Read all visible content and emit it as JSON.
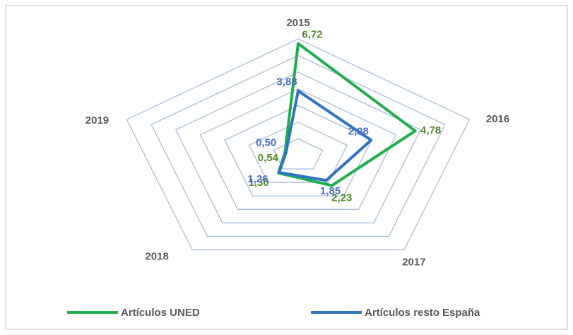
{
  "chart_data": {
    "type": "radar",
    "categories": [
      "2015",
      "2016",
      "2017",
      "2018",
      "2019"
    ],
    "series": [
      {
        "name": "Artículos UNED",
        "color": "#1fae4c",
        "label_color": "#548a2a",
        "values": [
          6.72,
          4.78,
          2.23,
          1.3,
          0.54
        ],
        "value_labels": [
          "6,72",
          "4,78",
          "2,23",
          "1,30",
          "0,54"
        ]
      },
      {
        "name": "Artículos resto España",
        "color": "#2e75c0",
        "label_color": "#4a6fc4",
        "values": [
          3.88,
          2.98,
          1.85,
          1.26,
          0.5
        ],
        "value_labels": [
          "3,88",
          "2,98",
          "1,85",
          "1,26",
          "0,50"
        ]
      }
    ],
    "ylim": [
      0,
      7
    ],
    "yticks": [
      1,
      2,
      3,
      4,
      5,
      6,
      7
    ],
    "grid": true,
    "grid_color": "#9db6dc",
    "legend": "bottom"
  }
}
